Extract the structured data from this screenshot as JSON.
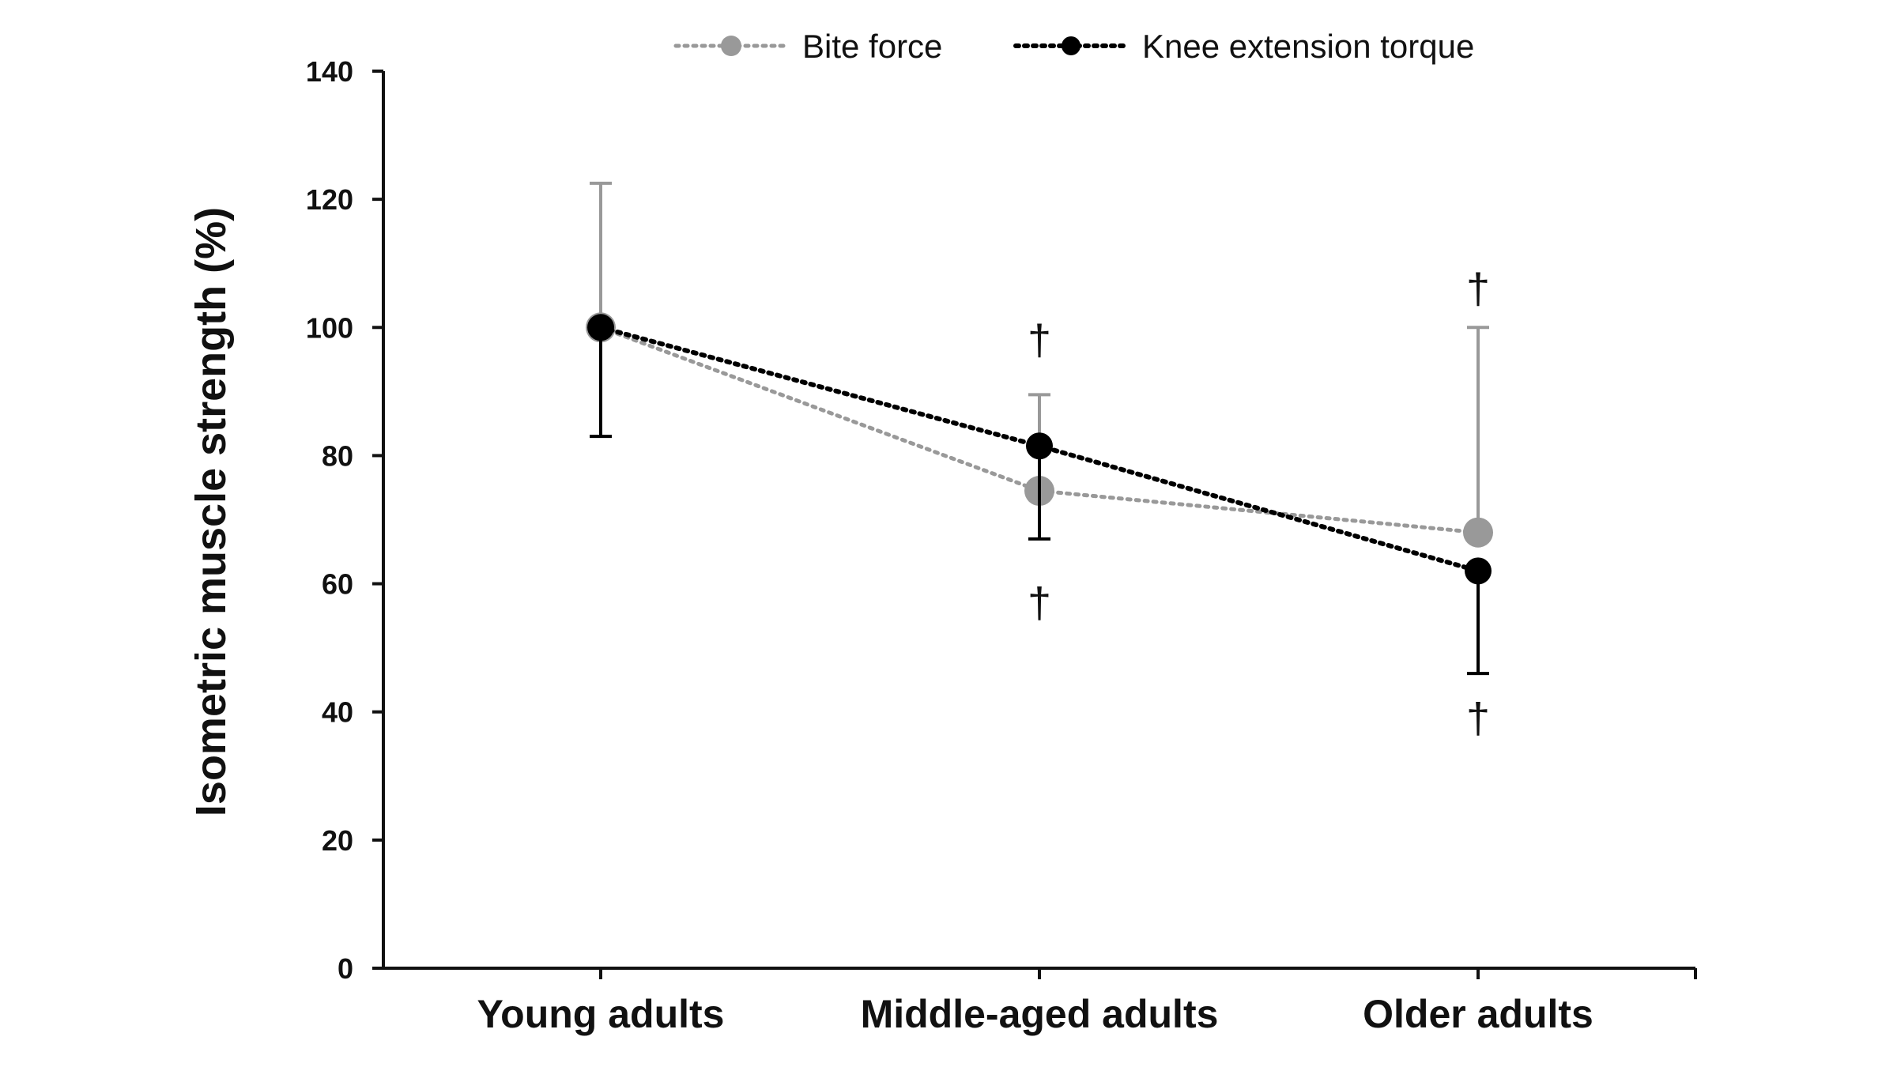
{
  "chart_data": {
    "type": "line",
    "title": "",
    "xlabel": "",
    "ylabel": "Isometric muscle strength (%)",
    "categories": [
      "Young adults",
      "Middle-aged adults",
      "Older adults"
    ],
    "ylim": [
      0,
      140
    ],
    "yticks": [
      "0",
      "20",
      "40",
      "60",
      "80",
      "100",
      "120",
      "140"
    ],
    "grid": false,
    "legend_position": "top",
    "line_style": "dotted",
    "series": [
      {
        "name": "Bite force",
        "values": [
          100,
          74.5,
          68
        ],
        "error_upper": [
          122.5,
          89.5,
          100
        ],
        "color": "#999999"
      },
      {
        "name": "Knee extension torque",
        "values": [
          100,
          81.5,
          62
        ],
        "error_lower": [
          83,
          67,
          46
        ],
        "color": "#000000"
      }
    ],
    "annotations": [
      {
        "category": "Middle-aged adults",
        "side": "above",
        "text": "†",
        "y": 98
      },
      {
        "category": "Middle-aged adults",
        "side": "below",
        "text": "†",
        "y": 57
      },
      {
        "category": "Older adults",
        "side": "above",
        "text": "†",
        "y": 106
      },
      {
        "category": "Older adults",
        "side": "below",
        "text": "†",
        "y": 39
      }
    ]
  }
}
